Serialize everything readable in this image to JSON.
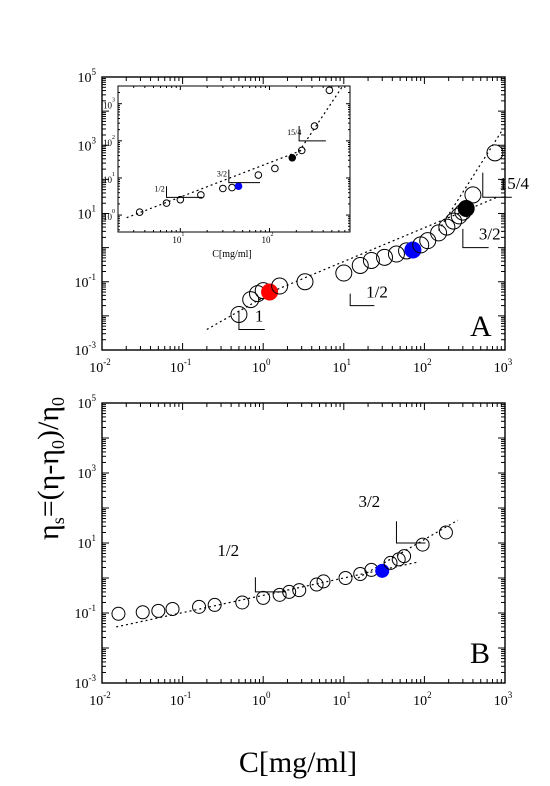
{
  "axis_labels": {
    "y": "ηs=(η-η0)/η0",
    "x": "C[mg/ml]",
    "inset_x": "C[mg/ml]"
  },
  "chart_data": [
    {
      "id": "A",
      "type": "scatter",
      "panel_label": "A",
      "xscale": "log",
      "yscale": "log",
      "xlim": [
        0.01,
        1000
      ],
      "ylim": [
        0.001,
        100000
      ],
      "xticks": [
        0.01,
        0.1,
        1,
        10,
        100,
        1000
      ],
      "yticks": [
        0.001,
        0.1,
        10,
        1000,
        100000
      ],
      "points": [
        {
          "x": 0.5,
          "y": 0.011,
          "fill": "none"
        },
        {
          "x": 0.7,
          "y": 0.03,
          "fill": "none"
        },
        {
          "x": 0.85,
          "y": 0.045,
          "fill": "none"
        },
        {
          "x": 1.0,
          "y": 0.055,
          "fill": "none"
        },
        {
          "x": 1.2,
          "y": 0.05,
          "fill": "red"
        },
        {
          "x": 1.6,
          "y": 0.075,
          "fill": "none"
        },
        {
          "x": 3.3,
          "y": 0.1,
          "fill": "none"
        },
        {
          "x": 10,
          "y": 0.18,
          "fill": "none"
        },
        {
          "x": 16,
          "y": 0.3,
          "fill": "none"
        },
        {
          "x": 22,
          "y": 0.42,
          "fill": "none"
        },
        {
          "x": 32,
          "y": 0.52,
          "fill": "none"
        },
        {
          "x": 45,
          "y": 0.65,
          "fill": "none"
        },
        {
          "x": 60,
          "y": 0.8,
          "fill": "none"
        },
        {
          "x": 72,
          "y": 0.85,
          "fill": "blue"
        },
        {
          "x": 90,
          "y": 1.2,
          "fill": "none"
        },
        {
          "x": 110,
          "y": 1.6,
          "fill": "none"
        },
        {
          "x": 150,
          "y": 2.7,
          "fill": "none"
        },
        {
          "x": 190,
          "y": 4.0,
          "fill": "none"
        },
        {
          "x": 230,
          "y": 6.0,
          "fill": "none"
        },
        {
          "x": 270,
          "y": 8.5,
          "fill": "none"
        },
        {
          "x": 300,
          "y": 11,
          "fill": "none"
        },
        {
          "x": 330,
          "y": 14,
          "fill": "black"
        },
        {
          "x": 400,
          "y": 35,
          "fill": "none"
        },
        {
          "x": 750,
          "y": 600,
          "fill": "none"
        }
      ],
      "fit_lines": [
        {
          "from": [
            0.2,
            0.004
          ],
          "to": [
            1.5,
            0.06
          ]
        },
        {
          "from": [
            1.5,
            0.06
          ],
          "to": [
            800,
            30
          ]
        },
        {
          "from": [
            150,
            3.2
          ],
          "to": [
            900,
            2500
          ]
        }
      ],
      "slope_markers": [
        {
          "label": "1",
          "corner": [
            0.5,
            0.004
          ],
          "dx": 0.32,
          "dy": 0.55
        },
        {
          "label": "1/2",
          "corner": [
            12,
            0.02
          ],
          "dx": 0.3,
          "dy": 0.35
        },
        {
          "label": "3/2",
          "corner": [
            300,
            1.0
          ],
          "dx": 0.32,
          "dy": 0.55
        },
        {
          "label": "15/4",
          "corner": [
            530,
            30
          ],
          "dx": 0.36,
          "dy": 0.72
        }
      ],
      "inset": {
        "xscale": "log",
        "yscale": "log",
        "xlim": [
          2,
          800
        ],
        "ylim": [
          0.35,
          3000
        ],
        "xticks": [
          10,
          100
        ],
        "yticks": [
          1,
          10,
          100,
          1000
        ],
        "points": [
          {
            "x": 3.5,
            "y": 1.2,
            "fill": "none"
          },
          {
            "x": 7,
            "y": 2.1,
            "fill": "none"
          },
          {
            "x": 10,
            "y": 2.6,
            "fill": "none"
          },
          {
            "x": 17,
            "y": 3.5,
            "fill": "none"
          },
          {
            "x": 30,
            "y": 5.2,
            "fill": "none"
          },
          {
            "x": 38,
            "y": 5.5,
            "fill": "none"
          },
          {
            "x": 45,
            "y": 6.0,
            "fill": "blue"
          },
          {
            "x": 75,
            "y": 12,
            "fill": "none"
          },
          {
            "x": 115,
            "y": 18,
            "fill": "none"
          },
          {
            "x": 180,
            "y": 35,
            "fill": "black"
          },
          {
            "x": 230,
            "y": 55,
            "fill": "none"
          },
          {
            "x": 320,
            "y": 250,
            "fill": "none"
          },
          {
            "x": 470,
            "y": 2300,
            "fill": "none"
          }
        ],
        "fit_lines": [
          {
            "from": [
              2.5,
              0.85
            ],
            "to": [
              250,
              60
            ]
          },
          {
            "from": [
              200,
              40
            ],
            "to": [
              650,
              2800
            ]
          }
        ],
        "slope_markers": [
          {
            "label": "1/2",
            "corner": [
              7,
              3.0
            ],
            "dx": 0.4,
            "dy": 0.3
          },
          {
            "label": "3/2",
            "corner": [
              35,
              7.5
            ],
            "dx": 0.35,
            "dy": 0.35
          },
          {
            "label": "15/4",
            "corner": [
              215,
              100
            ],
            "dx": 0.3,
            "dy": 0.4
          }
        ]
      }
    },
    {
      "id": "B",
      "type": "scatter",
      "panel_label": "B",
      "xscale": "log",
      "yscale": "log",
      "xlim": [
        0.01,
        1000
      ],
      "ylim": [
        0.001,
        100000
      ],
      "xticks": [
        0.01,
        0.1,
        1,
        10,
        100,
        1000
      ],
      "yticks": [
        0.001,
        0.1,
        10,
        1000,
        100000
      ],
      "points": [
        {
          "x": 0.016,
          "y": 0.095,
          "fill": "none"
        },
        {
          "x": 0.032,
          "y": 0.105,
          "fill": "none"
        },
        {
          "x": 0.05,
          "y": 0.115,
          "fill": "none"
        },
        {
          "x": 0.075,
          "y": 0.13,
          "fill": "none"
        },
        {
          "x": 0.16,
          "y": 0.15,
          "fill": "none"
        },
        {
          "x": 0.25,
          "y": 0.17,
          "fill": "none"
        },
        {
          "x": 0.55,
          "y": 0.2,
          "fill": "none"
        },
        {
          "x": 1.0,
          "y": 0.27,
          "fill": "none"
        },
        {
          "x": 1.6,
          "y": 0.33,
          "fill": "none"
        },
        {
          "x": 2.1,
          "y": 0.4,
          "fill": "none"
        },
        {
          "x": 2.8,
          "y": 0.45,
          "fill": "none"
        },
        {
          "x": 4.6,
          "y": 0.65,
          "fill": "none"
        },
        {
          "x": 5.6,
          "y": 0.8,
          "fill": "none"
        },
        {
          "x": 10.5,
          "y": 1.0,
          "fill": "none"
        },
        {
          "x": 16,
          "y": 1.3,
          "fill": "none"
        },
        {
          "x": 22,
          "y": 1.7,
          "fill": "none"
        },
        {
          "x": 30,
          "y": 1.6,
          "fill": "blue"
        },
        {
          "x": 38,
          "y": 2.7,
          "fill": "none"
        },
        {
          "x": 48,
          "y": 3.4,
          "fill": "none"
        },
        {
          "x": 56,
          "y": 4.2,
          "fill": "none"
        },
        {
          "x": 95,
          "y": 9.0,
          "fill": "none"
        },
        {
          "x": 185,
          "y": 20,
          "fill": "none"
        }
      ],
      "fit_lines": [
        {
          "from": [
            0.015,
            0.04
          ],
          "to": [
            80,
            2.8
          ]
        },
        {
          "from": [
            15,
            1.0
          ],
          "to": [
            260,
            45
          ]
        }
      ],
      "slope_markers": [
        {
          "label": "1/2",
          "corner": [
            0.8,
            0.4
          ],
          "dx": 0.38,
          "dy": 0.42
        },
        {
          "label": "3/2",
          "corner": [
            45,
            10
          ],
          "dx": 0.36,
          "dy": 0.62
        }
      ]
    }
  ]
}
